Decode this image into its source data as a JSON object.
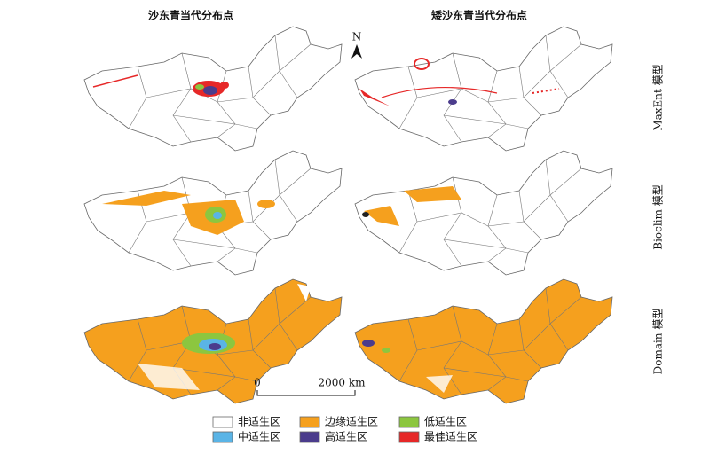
{
  "column_titles": [
    "沙东青当代分布点",
    "矮沙东青当代分布点"
  ],
  "row_labels": [
    "MaxEnt 模型",
    "Bioclim 模型",
    "Domain 模型"
  ],
  "north": "N",
  "scale_bar": {
    "start": "0",
    "end": "2000 km"
  },
  "legend": [
    {
      "name": "非适生区",
      "color": "#ffffff"
    },
    {
      "name": "边缘适生区",
      "color": "#f5a01e"
    },
    {
      "name": "低适生区",
      "color": "#8cc63f"
    },
    {
      "name": "中适生区",
      "color": "#5ab4e6"
    },
    {
      "name": "高适生区",
      "color": "#4b3c8c"
    },
    {
      "name": "最佳适生区",
      "color": "#e62828"
    }
  ]
}
